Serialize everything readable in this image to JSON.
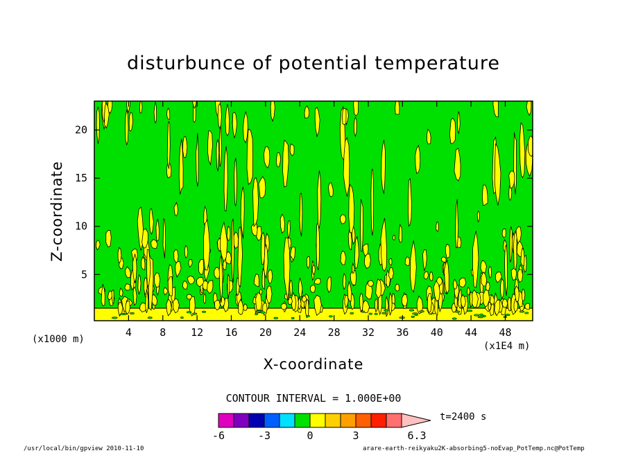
{
  "chart_data": {
    "type": "heatmap",
    "title": "disturbunce of potential temperature",
    "xlabel": "X-coordinate",
    "ylabel": "Z-coordinate",
    "x_unit": "(x1000 m)",
    "x_scale_note": "(x1E4 m)",
    "x_ticks": [
      4,
      8,
      12,
      16,
      20,
      24,
      28,
      32,
      36,
      40,
      44,
      48
    ],
    "y_ticks": [
      5,
      10,
      15,
      20
    ],
    "xlim": [
      0,
      51.2
    ],
    "ylim": [
      0.2,
      23
    ],
    "contour_interval_text": "CONTOUR INTERVAL = 1.000E+00",
    "colorbar": {
      "levels": [
        -6,
        -5,
        -4,
        -3,
        -2,
        -1,
        0,
        1,
        2,
        3,
        4,
        5,
        6,
        6.3
      ],
      "colors": [
        "#e000c0",
        "#8000c0",
        "#0000b0",
        "#0060ff",
        "#00e0ff",
        "#00e000",
        "#ffff00",
        "#ffd000",
        "#ffa000",
        "#ff6000",
        "#ff2000",
        "#ff7070",
        "#ffc0c0"
      ],
      "tick_labels": [
        "-6",
        "-3",
        "0",
        "3",
        "6.3"
      ],
      "time_label": "t=2400 s"
    },
    "background_color": "#00e000",
    "positive_color": "#ffff00",
    "surface_band_top": 1.5
  },
  "footer": {
    "left": "/usr/local/bin/gpview  2010-11-10",
    "right": "arare-earth-reikyaku2K-absorbing5-noEvap_PotTemp.nc@PotTemp"
  }
}
